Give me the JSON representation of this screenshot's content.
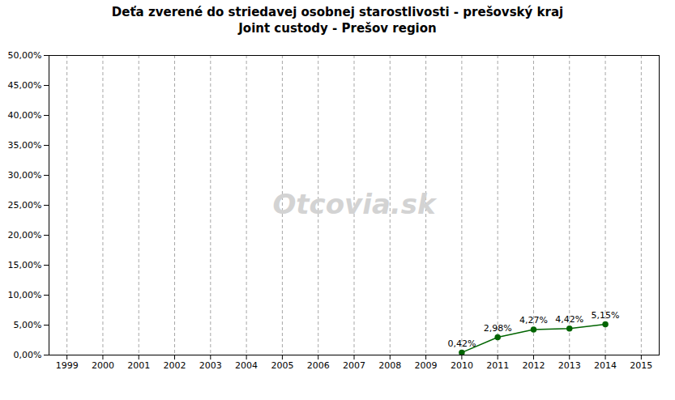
{
  "chart_data": {
    "type": "line",
    "title": "Deťa zverené do striedavej osobnej starostlivosti - prešovský kraj",
    "subtitle": "Joint custody - Prešov region",
    "x": [
      2010,
      2011,
      2012,
      2013,
      2014
    ],
    "values": [
      0.0042,
      0.0298,
      0.0427,
      0.0442,
      0.0515
    ],
    "value_labels": [
      "0,42%",
      "2,98%",
      "4,27%",
      "4,42%",
      "5,15%"
    ],
    "data_labels": true,
    "color": "#006400",
    "marker": "circle",
    "annotations": [
      "Otcovia.sk"
    ],
    "grid": "x",
    "xlim": [
      1998.5,
      2015.5
    ],
    "xticks": [
      1999,
      2000,
      2001,
      2002,
      2003,
      2004,
      2005,
      2006,
      2007,
      2008,
      2009,
      2010,
      2011,
      2012,
      2013,
      2014,
      2015
    ],
    "ylim": [
      0.0,
      0.5
    ],
    "yticks": [
      {
        "value": 0.0,
        "label": "0,00%"
      },
      {
        "value": 0.05,
        "label": "5,00%"
      },
      {
        "value": 0.1,
        "label": "10,00%"
      },
      {
        "value": 0.15,
        "label": "15,00%"
      },
      {
        "value": 0.2,
        "label": "20,00%"
      },
      {
        "value": 0.25,
        "label": "25,00%"
      },
      {
        "value": 0.3,
        "label": "30,00%"
      },
      {
        "value": 0.35,
        "label": "35,00%"
      },
      {
        "value": 0.4,
        "label": "40,00%"
      },
      {
        "value": 0.45,
        "label": "45,00%"
      },
      {
        "value": 0.5,
        "label": "50,00%"
      }
    ]
  }
}
